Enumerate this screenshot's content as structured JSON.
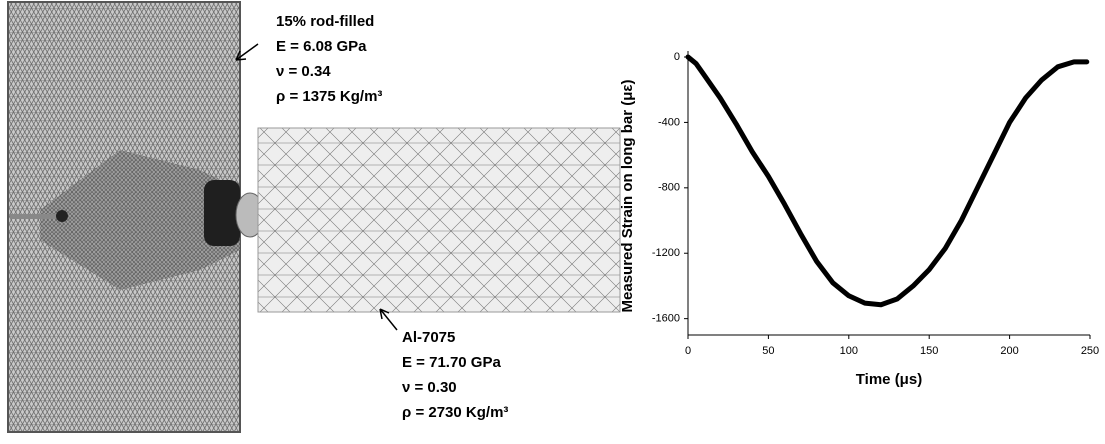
{
  "mesh_figure": {
    "plate_labels": [
      "15% rod-filled",
      "E = 6.08 GPa",
      "ν = 0.34",
      "ρ = 1375 Kg/m³"
    ],
    "bar_labels": [
      "Al-7075",
      "E = 71.70 GPa",
      "ν = 0.30",
      "ρ = 2730 Kg/m³"
    ]
  },
  "chart_data": {
    "type": "line",
    "x_label": "Time (μs)",
    "y_label": "Measured Strain on long bar (με)",
    "x": [
      0,
      5,
      10,
      20,
      30,
      40,
      50,
      60,
      70,
      80,
      90,
      100,
      110,
      120,
      130,
      140,
      150,
      160,
      170,
      180,
      190,
      200,
      210,
      220,
      230,
      240,
      248
    ],
    "series": [
      {
        "color": "#000000",
        "values": [
          0,
          -40,
          -110,
          -250,
          -410,
          -580,
          -730,
          -900,
          -1080,
          -1250,
          -1380,
          -1460,
          -1505,
          -1515,
          -1480,
          -1400,
          -1300,
          -1170,
          -1000,
          -800,
          -600,
          -400,
          -250,
          -140,
          -60,
          -30,
          -30
        ]
      }
    ],
    "xlim": [
      0,
      250
    ],
    "xticks": [
      0,
      50,
      100,
      150,
      200,
      250
    ],
    "ylim": [
      -1700,
      0
    ],
    "yticks": [
      0,
      -400,
      -800,
      -1200,
      -1600
    ],
    "grid": false
  }
}
